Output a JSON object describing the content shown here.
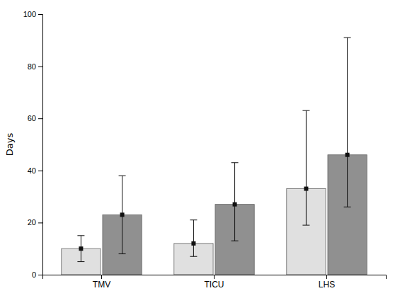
{
  "chart_data": {
    "type": "bar",
    "categories": [
      "TMV",
      "TICU",
      "LHS"
    ],
    "series": [
      {
        "color": "#e0e0e0",
        "marker": "square",
        "values": [
          10,
          12,
          33
        ],
        "yerr_lower": [
          5,
          5,
          14
        ],
        "yerr_upper": [
          5,
          9,
          30
        ]
      },
      {
        "color": "#909090",
        "marker": "square",
        "values": [
          23,
          27,
          46
        ],
        "yerr_lower": [
          15,
          14,
          20
        ],
        "yerr_upper": [
          15,
          16,
          45
        ]
      }
    ],
    "ylabel": "Days",
    "ylim": [
      0,
      100
    ],
    "yticks": [
      0,
      20,
      40,
      60,
      80,
      100
    ],
    "grid": false
  }
}
